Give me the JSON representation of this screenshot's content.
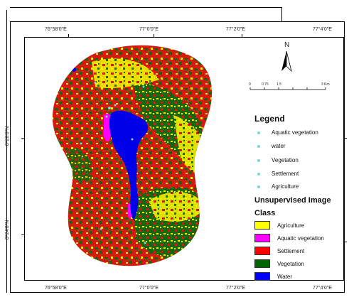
{
  "map": {
    "x_ticks": [
      "76°58'0\"E",
      "77°0'0\"E",
      "77°2'0\"E",
      "77°4'0\"E"
    ],
    "y_ticks": [
      "8°26'0\"N",
      "8°24'0\"N"
    ],
    "north_label": "N",
    "scale_labels": [
      "0",
      "0.75",
      "1.5",
      "3 Km"
    ]
  },
  "legend": {
    "title": "Legend",
    "point_items": [
      {
        "label": "Aquatic vegetation"
      },
      {
        "label": "water"
      },
      {
        "label": "Vegetation"
      },
      {
        "label": "Settlement"
      },
      {
        "label": "Agriculture"
      }
    ],
    "class_title_line1": "Unsupervised Image",
    "class_title_line2": "Class",
    "classes": [
      {
        "label": "Agriculture",
        "color": "#ffff00"
      },
      {
        "label": "Aquatic vegetation",
        "color": "#ff00ff"
      },
      {
        "label": "Settlement",
        "color": "#ff0000"
      },
      {
        "label": "Vegetation",
        "color": "#006400"
      },
      {
        "label": "Water",
        "color": "#0000ff"
      }
    ]
  }
}
